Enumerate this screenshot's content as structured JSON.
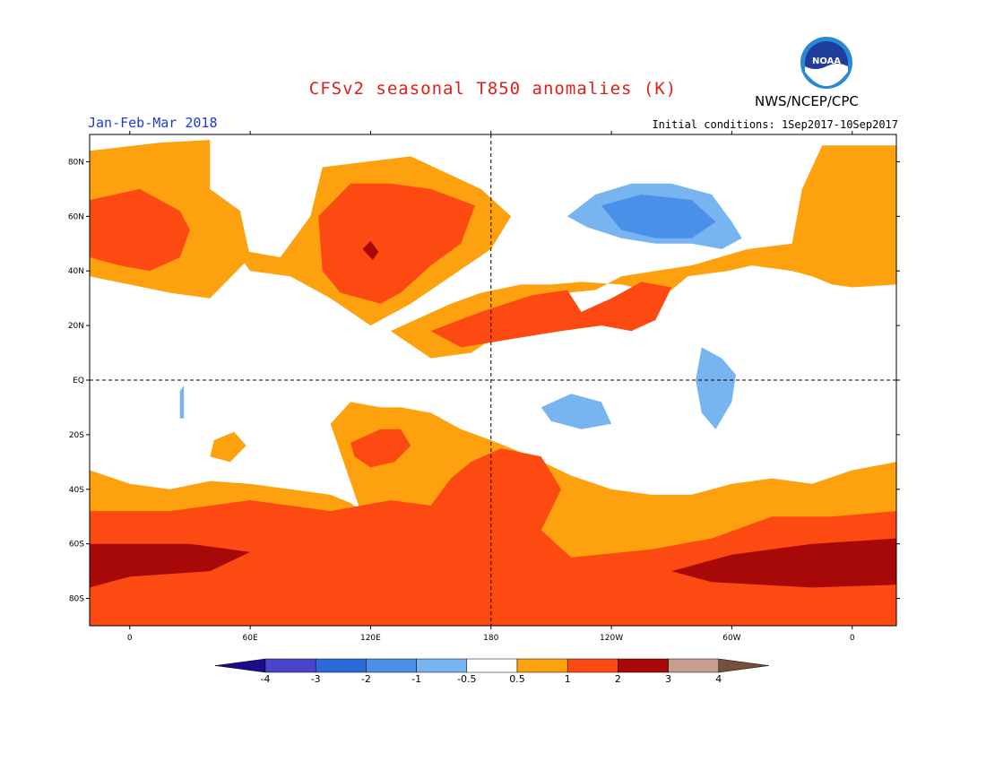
{
  "title": "CFSv2 seasonal T850 anomalies (K)",
  "agency": "NWS/NCEP/CPC",
  "logo_text": "NOAA",
  "season": "Jan-Feb-Mar 2018",
  "initial_conditions": "Initial conditions: 1Sep2017-10Sep2017",
  "lat_labels": [
    {
      "label": "80N",
      "lat": 80
    },
    {
      "label": "60N",
      "lat": 60
    },
    {
      "label": "40N",
      "lat": 40
    },
    {
      "label": "20N",
      "lat": 20
    },
    {
      "label": "EQ",
      "lat": 0
    },
    {
      "label": "20S",
      "lat": -20
    },
    {
      "label": "40S",
      "lat": -40
    },
    {
      "label": "60S",
      "lat": -60
    },
    {
      "label": "80S",
      "lat": -80
    }
  ],
  "lon_labels": [
    {
      "label": "0",
      "lon": 0
    },
    {
      "label": "60E",
      "lon": 60
    },
    {
      "label": "120E",
      "lon": 120
    },
    {
      "label": "180",
      "lon": 180
    },
    {
      "label": "120W",
      "lon": 240
    },
    {
      "label": "60W",
      "lon": 300
    },
    {
      "label": "0",
      "lon": 360
    }
  ],
  "colorbar": {
    "labels": [
      "-4",
      "-3",
      "-2",
      "-1",
      "-0.5",
      "0.5",
      "1",
      "2",
      "3",
      "4"
    ],
    "colors": [
      "#1a0d8c",
      "#4a44cc",
      "#2a6ad8",
      "#4a90e8",
      "#78b4f0",
      "#ffffff",
      "#fda10f",
      "#fc4a12",
      "#a70808",
      "#c69e8e",
      "#74503d"
    ]
  },
  "chart_data": {
    "type": "heatmap",
    "title": "CFSv2 seasonal T850 anomalies (K)",
    "variable_units": "K",
    "period": "Jan-Feb-Mar 2018",
    "lon_range": [
      -20,
      382
    ],
    "lat_range": [
      -90,
      90
    ],
    "levels": [
      -4,
      -3,
      -2,
      -1,
      -0.5,
      0.5,
      1,
      2,
      3,
      4
    ],
    "regions": [
      {
        "level": 0.75,
        "points": [
          [
            -20,
            84
          ],
          [
            15,
            87
          ],
          [
            40,
            88
          ],
          [
            40,
            70
          ],
          [
            55,
            62
          ],
          [
            60,
            45
          ],
          [
            40,
            30
          ],
          [
            20,
            32
          ],
          [
            0,
            35
          ],
          [
            -20,
            38
          ]
        ]
      },
      {
        "level": 0.75,
        "points": [
          [
            52,
            48
          ],
          [
            75,
            45
          ],
          [
            90,
            60
          ],
          [
            96,
            78
          ],
          [
            140,
            82
          ],
          [
            175,
            70
          ],
          [
            190,
            60
          ],
          [
            180,
            48
          ],
          [
            160,
            38
          ],
          [
            140,
            28
          ],
          [
            120,
            20
          ],
          [
            100,
            30
          ],
          [
            80,
            38
          ],
          [
            60,
            40
          ]
        ]
      },
      {
        "level": 0.75,
        "points": [
          [
            130,
            18
          ],
          [
            160,
            28
          ],
          [
            175,
            32
          ],
          [
            195,
            35
          ],
          [
            210,
            35
          ],
          [
            225,
            36
          ],
          [
            245,
            35
          ],
          [
            258,
            33
          ],
          [
            270,
            33
          ],
          [
            278,
            38
          ],
          [
            298,
            40
          ],
          [
            310,
            42
          ],
          [
            330,
            40
          ],
          [
            340,
            38
          ],
          [
            350,
            35
          ],
          [
            360,
            34
          ],
          [
            382,
            35
          ],
          [
            382,
            86
          ],
          [
            345,
            86
          ],
          [
            335,
            70
          ],
          [
            330,
            50
          ],
          [
            308,
            48
          ],
          [
            280,
            42
          ],
          [
            262,
            40
          ],
          [
            245,
            38
          ],
          [
            232,
            33
          ],
          [
            218,
            32
          ],
          [
            210,
            30
          ],
          [
            195,
            22
          ],
          [
            170,
            10
          ],
          [
            150,
            8
          ]
        ]
      },
      {
        "level": 0.75,
        "points": [
          [
            -20,
            -33
          ],
          [
            0,
            -38
          ],
          [
            20,
            -40
          ],
          [
            40,
            -37
          ],
          [
            60,
            -38
          ],
          [
            80,
            -40
          ],
          [
            100,
            -42
          ],
          [
            110,
            -45
          ],
          [
            115,
            -48
          ],
          [
            100,
            -16
          ],
          [
            110,
            -8
          ],
          [
            125,
            -10
          ],
          [
            135,
            -10
          ],
          [
            150,
            -12
          ],
          [
            165,
            -18
          ],
          [
            180,
            -22
          ],
          [
            200,
            -28
          ],
          [
            220,
            -35
          ],
          [
            240,
            -40
          ],
          [
            260,
            -42
          ],
          [
            280,
            -42
          ],
          [
            300,
            -38
          ],
          [
            320,
            -36
          ],
          [
            340,
            -38
          ],
          [
            360,
            -33
          ],
          [
            382,
            -30
          ],
          [
            382,
            -90
          ],
          [
            -20,
            -90
          ]
        ]
      },
      {
        "level": 0.75,
        "points": [
          [
            42,
            -22
          ],
          [
            52,
            -19
          ],
          [
            58,
            -24
          ],
          [
            50,
            -30
          ],
          [
            40,
            -28
          ]
        ]
      },
      {
        "level": 1.5,
        "points": [
          [
            -20,
            66
          ],
          [
            5,
            70
          ],
          [
            25,
            62
          ],
          [
            30,
            55
          ],
          [
            25,
            45
          ],
          [
            10,
            40
          ],
          [
            -5,
            42
          ],
          [
            -20,
            45
          ]
        ]
      },
      {
        "level": 1.5,
        "points": [
          [
            94,
            60
          ],
          [
            110,
            72
          ],
          [
            130,
            72
          ],
          [
            150,
            70
          ],
          [
            172,
            64
          ],
          [
            165,
            50
          ],
          [
            150,
            42
          ],
          [
            135,
            32
          ],
          [
            125,
            28
          ],
          [
            105,
            32
          ],
          [
            96,
            40
          ]
        ]
      },
      {
        "level": 1.5,
        "points": [
          [
            150,
            18
          ],
          [
            175,
            25
          ],
          [
            200,
            31
          ],
          [
            218,
            33
          ],
          [
            225,
            25
          ],
          [
            240,
            30
          ],
          [
            255,
            36
          ],
          [
            270,
            34
          ],
          [
            262,
            22
          ],
          [
            250,
            18
          ],
          [
            235,
            20
          ],
          [
            215,
            18
          ],
          [
            190,
            15
          ],
          [
            165,
            12
          ]
        ]
      },
      {
        "level": 1.5,
        "points": [
          [
            -20,
            -48
          ],
          [
            20,
            -48
          ],
          [
            60,
            -44
          ],
          [
            80,
            -46
          ],
          [
            100,
            -48
          ],
          [
            130,
            -44
          ],
          [
            150,
            -46
          ],
          [
            160,
            -36
          ],
          [
            170,
            -30
          ],
          [
            185,
            -25
          ],
          [
            205,
            -28
          ],
          [
            215,
            -40
          ],
          [
            205,
            -55
          ],
          [
            220,
            -65
          ],
          [
            260,
            -62
          ],
          [
            290,
            -58
          ],
          [
            320,
            -50
          ],
          [
            350,
            -50
          ],
          [
            382,
            -48
          ],
          [
            382,
            -90
          ],
          [
            -20,
            -90
          ]
        ]
      },
      {
        "level": 1.5,
        "points": [
          [
            110,
            -23
          ],
          [
            125,
            -18
          ],
          [
            135,
            -18
          ],
          [
            140,
            -24
          ],
          [
            132,
            -30
          ],
          [
            120,
            -32
          ],
          [
            112,
            -28
          ]
        ]
      },
      {
        "level": 2.5,
        "points": [
          [
            -20,
            -60
          ],
          [
            30,
            -60
          ],
          [
            60,
            -63
          ],
          [
            40,
            -70
          ],
          [
            0,
            -72
          ],
          [
            -20,
            -76
          ]
        ]
      },
      {
        "level": 2.5,
        "points": [
          [
            270,
            -70
          ],
          [
            300,
            -64
          ],
          [
            340,
            -60
          ],
          [
            382,
            -58
          ],
          [
            382,
            -75
          ],
          [
            340,
            -76
          ],
          [
            290,
            -74
          ]
        ]
      },
      {
        "level": 2.5,
        "points": [
          [
            116,
            48
          ],
          [
            121,
            44
          ],
          [
            124,
            47
          ],
          [
            120,
            51
          ]
        ]
      },
      {
        "level": -0.75,
        "points": [
          [
            218,
            60
          ],
          [
            232,
            68
          ],
          [
            250,
            72
          ],
          [
            270,
            72
          ],
          [
            290,
            68
          ],
          [
            300,
            58
          ],
          [
            305,
            52
          ],
          [
            295,
            48
          ],
          [
            280,
            50
          ],
          [
            262,
            50
          ],
          [
            245,
            52
          ],
          [
            228,
            56
          ]
        ]
      },
      {
        "level": -0.75,
        "points": [
          [
            285,
            12
          ],
          [
            295,
            8
          ],
          [
            302,
            2
          ],
          [
            300,
            -8
          ],
          [
            292,
            -18
          ],
          [
            285,
            -12
          ],
          [
            282,
            0
          ]
        ]
      },
      {
        "level": -0.75,
        "points": [
          [
            205,
            -10
          ],
          [
            220,
            -5
          ],
          [
            235,
            -8
          ],
          [
            240,
            -16
          ],
          [
            225,
            -18
          ],
          [
            210,
            -15
          ]
        ]
      },
      {
        "level": -0.75,
        "points": [
          [
            25,
            -4
          ],
          [
            27,
            -2
          ],
          [
            27,
            -14
          ],
          [
            25,
            -14
          ]
        ]
      },
      {
        "level": -1.5,
        "points": [
          [
            235,
            64
          ],
          [
            255,
            68
          ],
          [
            280,
            66
          ],
          [
            292,
            58
          ],
          [
            280,
            52
          ],
          [
            262,
            52
          ],
          [
            245,
            55
          ]
        ]
      }
    ]
  }
}
